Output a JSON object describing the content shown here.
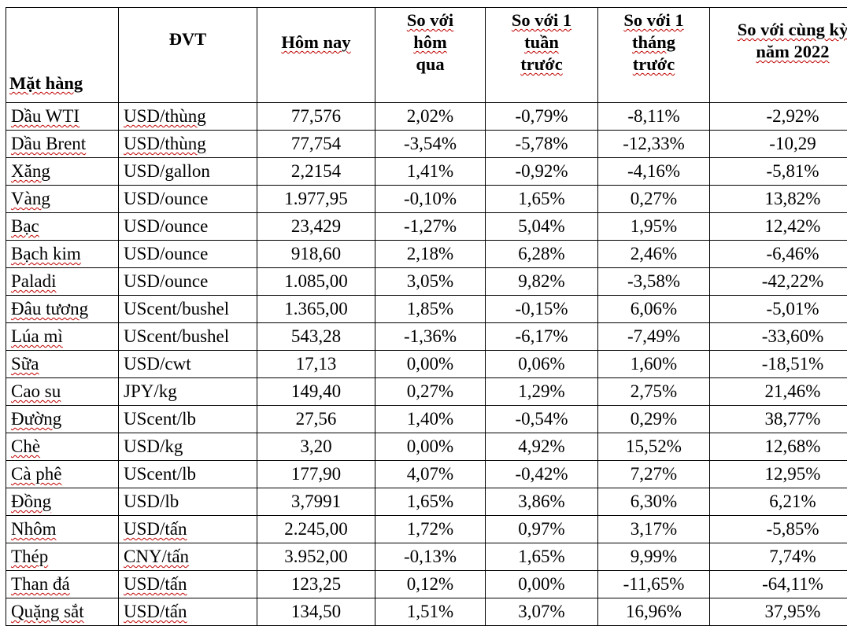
{
  "table": {
    "headers": {
      "item": "Mặt hàng",
      "unit": "ĐVT",
      "today": "Hôm nay",
      "vs_yesterday": [
        "So với",
        "hôm",
        "qua"
      ],
      "vs_week": [
        "So với 1",
        "tuần",
        "trước"
      ],
      "vs_month": [
        "So với 1",
        "tháng",
        "trước"
      ],
      "vs_year": [
        "So với cùng kỳ",
        "năm 2022"
      ]
    },
    "rows": [
      {
        "item": "Dầu WTI",
        "unit": "USD/thùng",
        "today": "77,576",
        "d1": "2,02%",
        "w1": "-0,79%",
        "m1": "-8,11%",
        "y1": "-2,92%"
      },
      {
        "item": "Dầu Brent",
        "unit": "USD/thùng",
        "today": "77,754",
        "d1": "-3,54%",
        "w1": "-5,78%",
        "m1": "-12,33%",
        "y1": "-10,29"
      },
      {
        "item": "Xăng",
        "unit": "USD/gallon",
        "today": "2,2154",
        "d1": "1,41%",
        "w1": "-0,92%",
        "m1": "-4,16%",
        "y1": "-5,81%"
      },
      {
        "item": "Vàng",
        "unit": "USD/ounce",
        "today": "1.977,95",
        "d1": "-0,10%",
        "w1": "1,65%",
        "m1": "0,27%",
        "y1": "13,82%"
      },
      {
        "item": "Bạc",
        "unit": "USD/ounce",
        "today": "23,429",
        "d1": "-1,27%",
        "w1": "5,04%",
        "m1": "1,95%",
        "y1": "12,42%"
      },
      {
        "item": "Bạch kim",
        "unit": "USD/ounce",
        "today": "918,60",
        "d1": "2,18%",
        "w1": "6,28%",
        "m1": "2,46%",
        "y1": "-6,46%"
      },
      {
        "item": "Paladi",
        "unit": "USD/ounce",
        "today": "1.085,00",
        "d1": "3,05%",
        "w1": "9,82%",
        "m1": "-3,58%",
        "y1": "-42,22%"
      },
      {
        "item": "Đâu tương",
        "unit": "UScent/bushel",
        "today": "1.365,00",
        "d1": "1,85%",
        "w1": "-0,15%",
        "m1": "6,06%",
        "y1": "-5,01%"
      },
      {
        "item": "Lúa mì",
        "unit": "UScent/bushel",
        "today": "543,28",
        "d1": "-1,36%",
        "w1": "-6,17%",
        "m1": "-7,49%",
        "y1": "-33,60%"
      },
      {
        "item": "Sữa",
        "unit": "USD/cwt",
        "today": "17,13",
        "d1": "0,00%",
        "w1": "0,06%",
        "m1": "1,60%",
        "y1": "-18,51%"
      },
      {
        "item": "Cao su",
        "unit": "JPY/kg",
        "today": "149,40",
        "d1": "0,27%",
        "w1": "1,29%",
        "m1": "2,75%",
        "y1": "21,46%"
      },
      {
        "item": "Đường",
        "unit": "UScent/lb",
        "today": "27,56",
        "d1": "1,40%",
        "w1": "-0,54%",
        "m1": "0,29%",
        "y1": "38,77%"
      },
      {
        "item": "Chè",
        "unit": "USD/kg",
        "today": "3,20",
        "d1": "0,00%",
        "w1": "4,92%",
        "m1": "15,52%",
        "y1": "12,68%"
      },
      {
        "item": "Cà phê",
        "unit": "UScent/lb",
        "today": "177,90",
        "d1": "4,07%",
        "w1": "-0,42%",
        "m1": "7,27%",
        "y1": "12,95%"
      },
      {
        "item": "Đồng",
        "unit": "USD/lb",
        "today": "3,7991",
        "d1": "1,65%",
        "w1": "3,86%",
        "m1": "6,30%",
        "y1": "6,21%"
      },
      {
        "item": "Nhôm",
        "unit": "USD/tấn",
        "today": "2.245,00",
        "d1": "1,72%",
        "w1": "0,97%",
        "m1": "3,17%",
        "y1": "-5,85%"
      },
      {
        "item": "Thép",
        "unit": "CNY/tấn",
        "today": "3.952,00",
        "d1": "-0,13%",
        "w1": "1,65%",
        "m1": "9,99%",
        "y1": "7,74%"
      },
      {
        "item": "Than đá",
        "unit": "USD/tấn",
        "today": "123,25",
        "d1": "0,12%",
        "w1": "0,00%",
        "m1": "-11,65%",
        "y1": "-64,11%"
      },
      {
        "item": "Quặng sắt",
        "unit": "USD/tấn",
        "today": "134,50",
        "d1": "1,51%",
        "w1": "3,07%",
        "m1": "16,96%",
        "y1": "37,95%"
      }
    ]
  }
}
